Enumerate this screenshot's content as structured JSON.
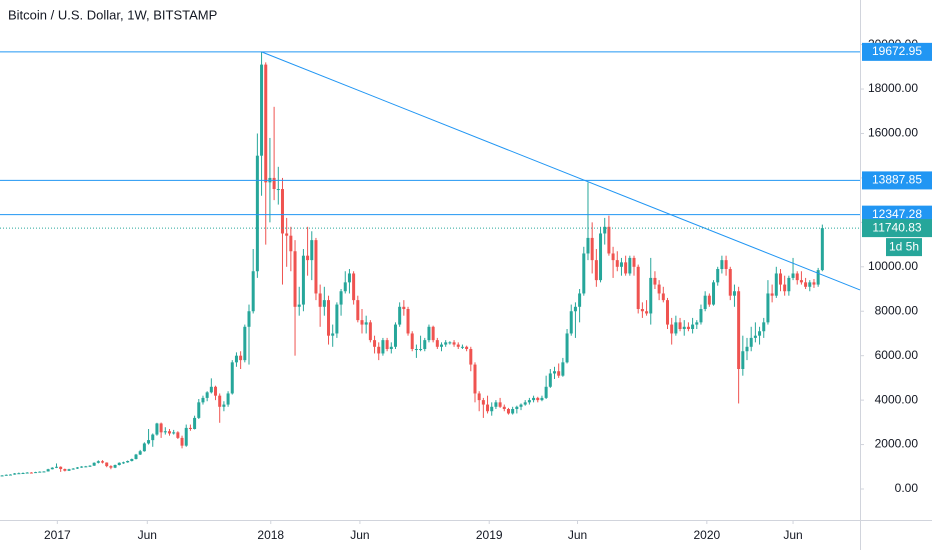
{
  "chart_data": {
    "type": "candlestick",
    "title": "Bitcoin / U.S. Dollar, 1W, BITSTAMP",
    "up_color": "#26a69a",
    "down_color": "#ef5350",
    "line_color": "#2196f3",
    "xlim": [
      -0.5,
      205
    ],
    "ylim": [
      -1395,
      22007
    ],
    "xticks": [
      {
        "value": 13.2,
        "label": "2017"
      },
      {
        "value": 34.7,
        "label": "Jun"
      },
      {
        "value": 64.2,
        "label": "2018"
      },
      {
        "value": 85.5,
        "label": "Jun"
      },
      {
        "value": 116.4,
        "label": "2019"
      },
      {
        "value": 137.5,
        "label": "Jun"
      },
      {
        "value": 168.4,
        "label": "2020"
      },
      {
        "value": 189,
        "label": "Jun"
      }
    ],
    "yticks": [
      {
        "value": 0,
        "label": "0.00"
      },
      {
        "value": 2000,
        "label": "2000.00"
      },
      {
        "value": 4000,
        "label": "4000.00"
      },
      {
        "value": 6000,
        "label": "6000.00"
      },
      {
        "value": 8000,
        "label": "8000.00"
      },
      {
        "value": 10000,
        "label": "10000.00"
      },
      {
        "value": 12000,
        "label": "12000.00"
      },
      {
        "value": 14000,
        "label": "14000.00"
      },
      {
        "value": 16000,
        "label": "16000.00"
      },
      {
        "value": 18000,
        "label": "18000.00"
      },
      {
        "value": 20000,
        "label": "20000.00"
      }
    ],
    "hlines": [
      19672.95,
      13887.85,
      12347.28
    ],
    "last_price": 11740.83,
    "countdown": "1d 5h",
    "trendline": {
      "x": [
        62,
        205
      ],
      "y": [
        19672.95,
        8960
      ]
    },
    "ohlc": [
      [
        600,
        625,
        590,
        610
      ],
      [
        610,
        655,
        600,
        640
      ],
      [
        640,
        665,
        625,
        650
      ],
      [
        650,
        720,
        640,
        700
      ],
      [
        700,
        740,
        690,
        710
      ],
      [
        710,
        745,
        695,
        720
      ],
      [
        720,
        760,
        705,
        740
      ],
      [
        740,
        760,
        715,
        730
      ],
      [
        730,
        775,
        720,
        760
      ],
      [
        760,
        795,
        750,
        780
      ],
      [
        780,
        800,
        765,
        790
      ],
      [
        790,
        910,
        785,
        890
      ],
      [
        890,
        980,
        880,
        960
      ],
      [
        960,
        1150,
        940,
        1000
      ],
      [
        1000,
        1020,
        770,
        900
      ],
      [
        900,
        920,
        790,
        820
      ],
      [
        820,
        910,
        810,
        890
      ],
      [
        890,
        940,
        870,
        920
      ],
      [
        920,
        990,
        900,
        970
      ],
      [
        970,
        1030,
        950,
        1010
      ],
      [
        1010,
        1040,
        980,
        1020
      ],
      [
        1020,
        1070,
        990,
        1050
      ],
      [
        1050,
        1200,
        1040,
        1180
      ],
      [
        1180,
        1290,
        1150,
        1250
      ],
      [
        1250,
        1300,
        1150,
        1190
      ],
      [
        1190,
        1200,
        980,
        1030
      ],
      [
        1030,
        1070,
        890,
        960
      ],
      [
        960,
        1100,
        940,
        1080
      ],
      [
        1080,
        1200,
        1060,
        1180
      ],
      [
        1180,
        1230,
        1130,
        1200
      ],
      [
        1200,
        1280,
        1180,
        1260
      ],
      [
        1260,
        1370,
        1240,
        1350
      ],
      [
        1350,
        1580,
        1330,
        1550
      ],
      [
        1550,
        1760,
        1530,
        1700
      ],
      [
        1700,
        2100,
        1680,
        2050
      ],
      [
        2050,
        2700,
        2000,
        2200
      ],
      [
        2200,
        2500,
        1900,
        2450
      ],
      [
        2450,
        2980,
        2400,
        2950
      ],
      [
        2950,
        2990,
        2300,
        2550
      ],
      [
        2550,
        2780,
        2450,
        2600
      ],
      [
        2600,
        2700,
        2400,
        2500
      ],
      [
        2500,
        2660,
        2450,
        2550
      ],
      [
        2550,
        2600,
        2250,
        2300
      ],
      [
        2300,
        2400,
        1830,
        1950
      ],
      [
        1950,
        2900,
        1900,
        2750
      ],
      [
        2750,
        2900,
        2620,
        2700
      ],
      [
        2700,
        3300,
        2680,
        3200
      ],
      [
        3200,
        4050,
        3150,
        3900
      ],
      [
        3900,
        4200,
        3800,
        4100
      ],
      [
        4100,
        4400,
        3950,
        4350
      ],
      [
        4350,
        4980,
        4300,
        4600
      ],
      [
        4600,
        4650,
        4000,
        4200
      ],
      [
        4200,
        4300,
        2980,
        3700
      ],
      [
        3700,
        3950,
        3500,
        3800
      ],
      [
        3800,
        4400,
        3700,
        4300
      ],
      [
        4300,
        5800,
        4250,
        5700
      ],
      [
        5700,
        6150,
        5500,
        6000
      ],
      [
        6000,
        6200,
        5400,
        5800
      ],
      [
        5800,
        7400,
        5700,
        7300
      ],
      [
        7300,
        8300,
        5600,
        8000
      ],
      [
        8000,
        10800,
        7900,
        9800
      ],
      [
        9800,
        16000,
        9500,
        15000
      ],
      [
        15000,
        19670,
        13200,
        19100
      ],
      [
        19100,
        19200,
        11000,
        13800
      ],
      [
        13800,
        15800,
        12000,
        14000
      ],
      [
        14000,
        17200,
        13000,
        13500
      ],
      [
        13500,
        14500,
        12800,
        13500
      ],
      [
        13500,
        14000,
        9200,
        11500
      ],
      [
        11500,
        12200,
        10000,
        11400
      ],
      [
        11400,
        11800,
        9800,
        10700
      ],
      [
        10700,
        11200,
        6000,
        8200
      ],
      [
        8200,
        9100,
        7800,
        8300
      ],
      [
        8300,
        10800,
        8000,
        10500
      ],
      [
        10500,
        11800,
        9600,
        10300
      ],
      [
        10300,
        11600,
        9400,
        11200
      ],
      [
        11200,
        11300,
        8500,
        8800
      ],
      [
        8800,
        9200,
        7300,
        8200
      ],
      [
        8200,
        9100,
        7800,
        8500
      ],
      [
        8500,
        8700,
        6500,
        6900
      ],
      [
        6900,
        7400,
        6400,
        7000
      ],
      [
        7000,
        8400,
        6800,
        8300
      ],
      [
        8300,
        9000,
        7800,
        8900
      ],
      [
        8900,
        9800,
        8800,
        9300
      ],
      [
        9300,
        9900,
        8800,
        9700
      ],
      [
        9700,
        9800,
        8300,
        8500
      ],
      [
        8500,
        8700,
        7500,
        7600
      ],
      [
        7600,
        8100,
        7000,
        7400
      ],
      [
        7400,
        7800,
        7000,
        7500
      ],
      [
        7500,
        7600,
        6600,
        6700
      ],
      [
        6700,
        6900,
        6100,
        6400
      ],
      [
        6400,
        6600,
        5800,
        6100
      ],
      [
        6100,
        6800,
        6000,
        6700
      ],
      [
        6700,
        6800,
        6200,
        6300
      ],
      [
        6300,
        6600,
        6100,
        6400
      ],
      [
        6400,
        7500,
        6300,
        7400
      ],
      [
        7400,
        8400,
        7300,
        8200
      ],
      [
        8200,
        8500,
        7800,
        8100
      ],
      [
        8100,
        8200,
        6900,
        7000
      ],
      [
        7000,
        7100,
        6200,
        6300
      ],
      [
        6300,
        6500,
        5900,
        6300
      ],
      [
        6300,
        6900,
        6200,
        6300
      ],
      [
        6300,
        6800,
        6200,
        6700
      ],
      [
        6700,
        7400,
        6600,
        7300
      ],
      [
        7300,
        7350,
        6600,
        6700
      ],
      [
        6700,
        6800,
        6300,
        6400
      ],
      [
        6400,
        6600,
        6200,
        6500
      ],
      [
        6500,
        6700,
        6400,
        6600
      ],
      [
        6600,
        6650,
        6500,
        6600
      ],
      [
        6600,
        6700,
        6400,
        6500
      ],
      [
        6500,
        6600,
        6300,
        6400
      ],
      [
        6400,
        6500,
        6300,
        6400
      ],
      [
        6400,
        6450,
        6200,
        6300
      ],
      [
        6300,
        6400,
        5300,
        5600
      ],
      [
        5600,
        5700,
        3900,
        4300
      ],
      [
        4300,
        4400,
        3500,
        4000
      ],
      [
        4000,
        4100,
        3200,
        3800
      ],
      [
        3800,
        4200,
        3400,
        3500
      ],
      [
        3500,
        3900,
        3300,
        3700
      ],
      [
        3700,
        4000,
        3600,
        3900
      ],
      [
        3900,
        4100,
        3650,
        3700
      ],
      [
        3700,
        3800,
        3500,
        3600
      ],
      [
        3600,
        3650,
        3350,
        3400
      ],
      [
        3400,
        3700,
        3350,
        3600
      ],
      [
        3600,
        3750,
        3400,
        3700
      ],
      [
        3700,
        3850,
        3550,
        3800
      ],
      [
        3800,
        4000,
        3750,
        3900
      ],
      [
        3900,
        4100,
        3800,
        4000
      ],
      [
        4000,
        4200,
        3900,
        4100
      ],
      [
        4100,
        4150,
        3900,
        4000
      ],
      [
        4000,
        4200,
        3950,
        4100
      ],
      [
        4100,
        5100,
        4050,
        4600
      ],
      [
        4600,
        5400,
        4550,
        5200
      ],
      [
        5200,
        5500,
        4950,
        5300
      ],
      [
        5300,
        5650,
        5000,
        5100
      ],
      [
        5100,
        5900,
        5050,
        5700
      ],
      [
        5700,
        7200,
        5650,
        7000
      ],
      [
        7000,
        8300,
        6900,
        8000
      ],
      [
        8000,
        8400,
        6800,
        8200
      ],
      [
        8200,
        9000,
        7500,
        8800
      ],
      [
        8800,
        10900,
        8700,
        10600
      ],
      [
        10600,
        13800,
        10300,
        11300
      ],
      [
        11300,
        12000,
        9700,
        10300
      ],
      [
        10300,
        10800,
        9100,
        9400
      ],
      [
        9400,
        11800,
        9300,
        11500
      ],
      [
        11500,
        12200,
        11000,
        11800
      ],
      [
        11800,
        12300,
        10500,
        10600
      ],
      [
        10600,
        10900,
        9500,
        10300
      ],
      [
        10300,
        10700,
        9800,
        10000
      ],
      [
        10000,
        10400,
        9600,
        10200
      ],
      [
        10200,
        10500,
        9600,
        9700
      ],
      [
        9700,
        10500,
        9600,
        10400
      ],
      [
        10400,
        10500,
        9600,
        10000
      ],
      [
        10000,
        10100,
        7900,
        8100
      ],
      [
        8100,
        8400,
        7700,
        8000
      ],
      [
        8000,
        8500,
        7800,
        7900
      ],
      [
        7900,
        10400,
        7400,
        9500
      ],
      [
        9500,
        9800,
        9000,
        9200
      ],
      [
        9200,
        9400,
        8500,
        8800
      ],
      [
        8800,
        9100,
        8400,
        8500
      ],
      [
        8500,
        8600,
        7200,
        7400
      ],
      [
        7400,
        7700,
        6500,
        7000
      ],
      [
        7000,
        7800,
        6900,
        7500
      ],
      [
        7500,
        7700,
        7100,
        7200
      ],
      [
        7200,
        7600,
        6900,
        7300
      ],
      [
        7300,
        7500,
        7100,
        7200
      ],
      [
        7200,
        7700,
        7000,
        7400
      ],
      [
        7400,
        7600,
        7200,
        7500
      ],
      [
        7500,
        8300,
        7400,
        8100
      ],
      [
        8100,
        8900,
        8000,
        8700
      ],
      [
        8700,
        8800,
        8200,
        8300
      ],
      [
        8300,
        9400,
        8250,
        9300
      ],
      [
        9300,
        10000,
        9150,
        9900
      ],
      [
        9900,
        10500,
        9700,
        10300
      ],
      [
        10300,
        10500,
        9600,
        9900
      ],
      [
        9900,
        10000,
        8500,
        8700
      ],
      [
        8700,
        9200,
        8200,
        8900
      ],
      [
        8900,
        9100,
        3850,
        5400
      ],
      [
        5400,
        6900,
        5100,
        6200
      ],
      [
        6200,
        6800,
        5800,
        6400
      ],
      [
        6400,
        7300,
        6200,
        6800
      ],
      [
        6800,
        7500,
        6600,
        6900
      ],
      [
        6900,
        7300,
        6500,
        7100
      ],
      [
        7100,
        7700,
        6800,
        7500
      ],
      [
        7500,
        9400,
        7400,
        8800
      ],
      [
        8800,
        9200,
        8400,
        8700
      ],
      [
        8700,
        10000,
        8600,
        9700
      ],
      [
        9700,
        9900,
        8900,
        9200
      ],
      [
        9200,
        9600,
        8700,
        8900
      ],
      [
        8900,
        9600,
        8700,
        9500
      ],
      [
        9500,
        10400,
        9400,
        9700
      ],
      [
        9700,
        9800,
        9200,
        9400
      ],
      [
        9400,
        9800,
        9200,
        9300
      ],
      [
        9300,
        9500,
        9000,
        9100
      ],
      [
        9100,
        9400,
        8900,
        9300
      ],
      [
        9300,
        9450,
        9050,
        9200
      ],
      [
        9200,
        9950,
        9100,
        9850
      ],
      [
        9850,
        11900,
        9800,
        11740
      ]
    ]
  }
}
